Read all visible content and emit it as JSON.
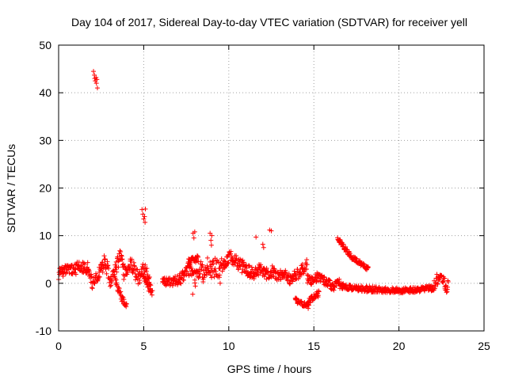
{
  "chart_data": {
    "type": "scatter",
    "title": "Day 104 of 2017, Sidereal Day-to-day VTEC variation (SDTVAR) for receiver yell",
    "xlabel": "GPS time / hours",
    "ylabel": "SDTVAR / TECUs",
    "xlim": [
      0,
      25
    ],
    "ylim": [
      -10,
      50
    ],
    "x_ticks": [
      0,
      5,
      10,
      15,
      20,
      25
    ],
    "y_ticks": [
      -10,
      0,
      10,
      20,
      30,
      40,
      50
    ],
    "x_tick_labels": [
      "0",
      "5",
      "10",
      "15",
      "20",
      "25"
    ],
    "y_tick_labels": [
      "-10",
      "0",
      "10",
      "20",
      "30",
      "40",
      "50"
    ],
    "grid": true,
    "marker": "+",
    "color": "#ff0000",
    "series": [
      {
        "name": "SDTVAR",
        "segments": [
          {
            "x_start": 0.0,
            "x_end": 1.7,
            "y": [
              2.0,
              2.5,
              3.0,
              3.2,
              3.0,
              2.8,
              3.4,
              3.0,
              3.5,
              2.6
            ],
            "spread": 1.2
          },
          {
            "x_start": 1.7,
            "x_end": 2.5,
            "y": [
              3.0,
              2.0,
              0.5,
              -0.5,
              1.0,
              2.5,
              3.0
            ],
            "spread": 1.5
          },
          {
            "x_start": 2.5,
            "x_end": 3.8,
            "y": [
              2.5,
              4.5,
              3.0,
              0.0,
              2.0,
              4.0,
              5.5,
              4.0
            ],
            "spread": 1.5
          },
          {
            "x_start": 3.3,
            "x_end": 4.0,
            "y": [
              1.0,
              -1.0,
              -2.5,
              -4.0,
              -4.8
            ],
            "spread": 0.7
          },
          {
            "x_start": 3.8,
            "x_end": 5.4,
            "y": [
              2.0,
              3.0,
              4.5,
              2.0,
              1.0,
              3.0,
              2.0,
              0.5
            ],
            "spread": 1.5
          },
          {
            "x_start": 5.0,
            "x_end": 5.5,
            "y": [
              1.0,
              0.0,
              -1.0,
              -2.0
            ],
            "spread": 0.8
          },
          {
            "x_start": 6.1,
            "x_end": 8.0,
            "y": [
              0.5,
              0.0,
              0.2,
              1.0,
              0.5,
              1.5,
              2.5,
              3.0,
              1.5
            ],
            "spread": 1.2
          },
          {
            "x_start": 7.6,
            "x_end": 8.2,
            "y": [
              4.5,
              5.0,
              4.8,
              5.5
            ],
            "spread": 0.7
          },
          {
            "x_start": 8.0,
            "x_end": 9.5,
            "y": [
              1.0,
              3.0,
              2.0,
              4.0,
              2.5,
              3.5,
              2.0
            ],
            "spread": 2.0
          },
          {
            "x_start": 9.5,
            "x_end": 11.5,
            "y": [
              3.5,
              4.5,
              5.5,
              5.0,
              4.0,
              3.0,
              2.5,
              2.0
            ],
            "spread": 1.5
          },
          {
            "x_start": 11.5,
            "x_end": 14.6,
            "y": [
              2.5,
              3.0,
              2.0,
              2.5,
              1.5,
              2.0,
              1.0,
              1.5,
              2.5,
              4.0
            ],
            "spread": 1.2
          },
          {
            "x_start": 13.9,
            "x_end": 14.7,
            "y": [
              -3.5,
              -4.0,
              -4.5,
              -5.0
            ],
            "spread": 0.6
          },
          {
            "x_start": 14.6,
            "x_end": 15.3,
            "y": [
              -4.0,
              -3.0,
              -2.0
            ],
            "spread": 0.7
          },
          {
            "x_start": 14.6,
            "x_end": 16.5,
            "y": [
              1.0,
              0.5,
              1.5,
              0.8,
              0.0,
              -0.5,
              0.5
            ],
            "spread": 1.0
          },
          {
            "x_start": 16.4,
            "x_end": 18.2,
            "y": [
              9.5,
              8.5,
              7.5,
              6.5,
              5.5,
              5.0,
              4.5,
              4.0,
              3.5,
              3.0
            ],
            "spread": 0.5
          },
          {
            "x_start": 16.5,
            "x_end": 22.0,
            "y": [
              -0.5,
              -0.8,
              -1.0,
              -1.2,
              -1.3,
              -1.5,
              -1.5,
              -1.5,
              -1.4,
              -1.2,
              -1.0
            ],
            "spread": 0.6
          },
          {
            "x_start": 22.0,
            "x_end": 22.9,
            "y": [
              -1.0,
              0.5,
              1.0,
              1.5,
              0.5,
              -1.0,
              0.0
            ],
            "spread": 1.2
          }
        ],
        "outliers": [
          {
            "x": 2.05,
            "y": 44.5
          },
          {
            "x": 2.1,
            "y": 43.7
          },
          {
            "x": 2.12,
            "y": 43.0
          },
          {
            "x": 2.15,
            "y": 42.5
          },
          {
            "x": 2.2,
            "y": 43.2
          },
          {
            "x": 2.22,
            "y": 42.0
          },
          {
            "x": 2.25,
            "y": 42.8
          },
          {
            "x": 2.28,
            "y": 41.0
          },
          {
            "x": 4.9,
            "y": 15.5
          },
          {
            "x": 4.95,
            "y": 14.5
          },
          {
            "x": 5.0,
            "y": 13.5
          },
          {
            "x": 5.05,
            "y": 14.0
          },
          {
            "x": 5.1,
            "y": 15.6
          },
          {
            "x": 5.08,
            "y": 12.8
          },
          {
            "x": 7.9,
            "y": 10.5
          },
          {
            "x": 7.95,
            "y": 9.5
          },
          {
            "x": 8.0,
            "y": 10.8
          },
          {
            "x": 7.88,
            "y": -2.3
          },
          {
            "x": 8.9,
            "y": 10.5
          },
          {
            "x": 8.95,
            "y": 9.0
          },
          {
            "x": 9.0,
            "y": 10.0
          },
          {
            "x": 8.98,
            "y": 8.0
          },
          {
            "x": 11.6,
            "y": 9.7
          },
          {
            "x": 12.0,
            "y": 8.2
          },
          {
            "x": 12.05,
            "y": 7.5
          },
          {
            "x": 12.4,
            "y": 11.2
          },
          {
            "x": 12.5,
            "y": 11.0
          }
        ]
      }
    ]
  }
}
